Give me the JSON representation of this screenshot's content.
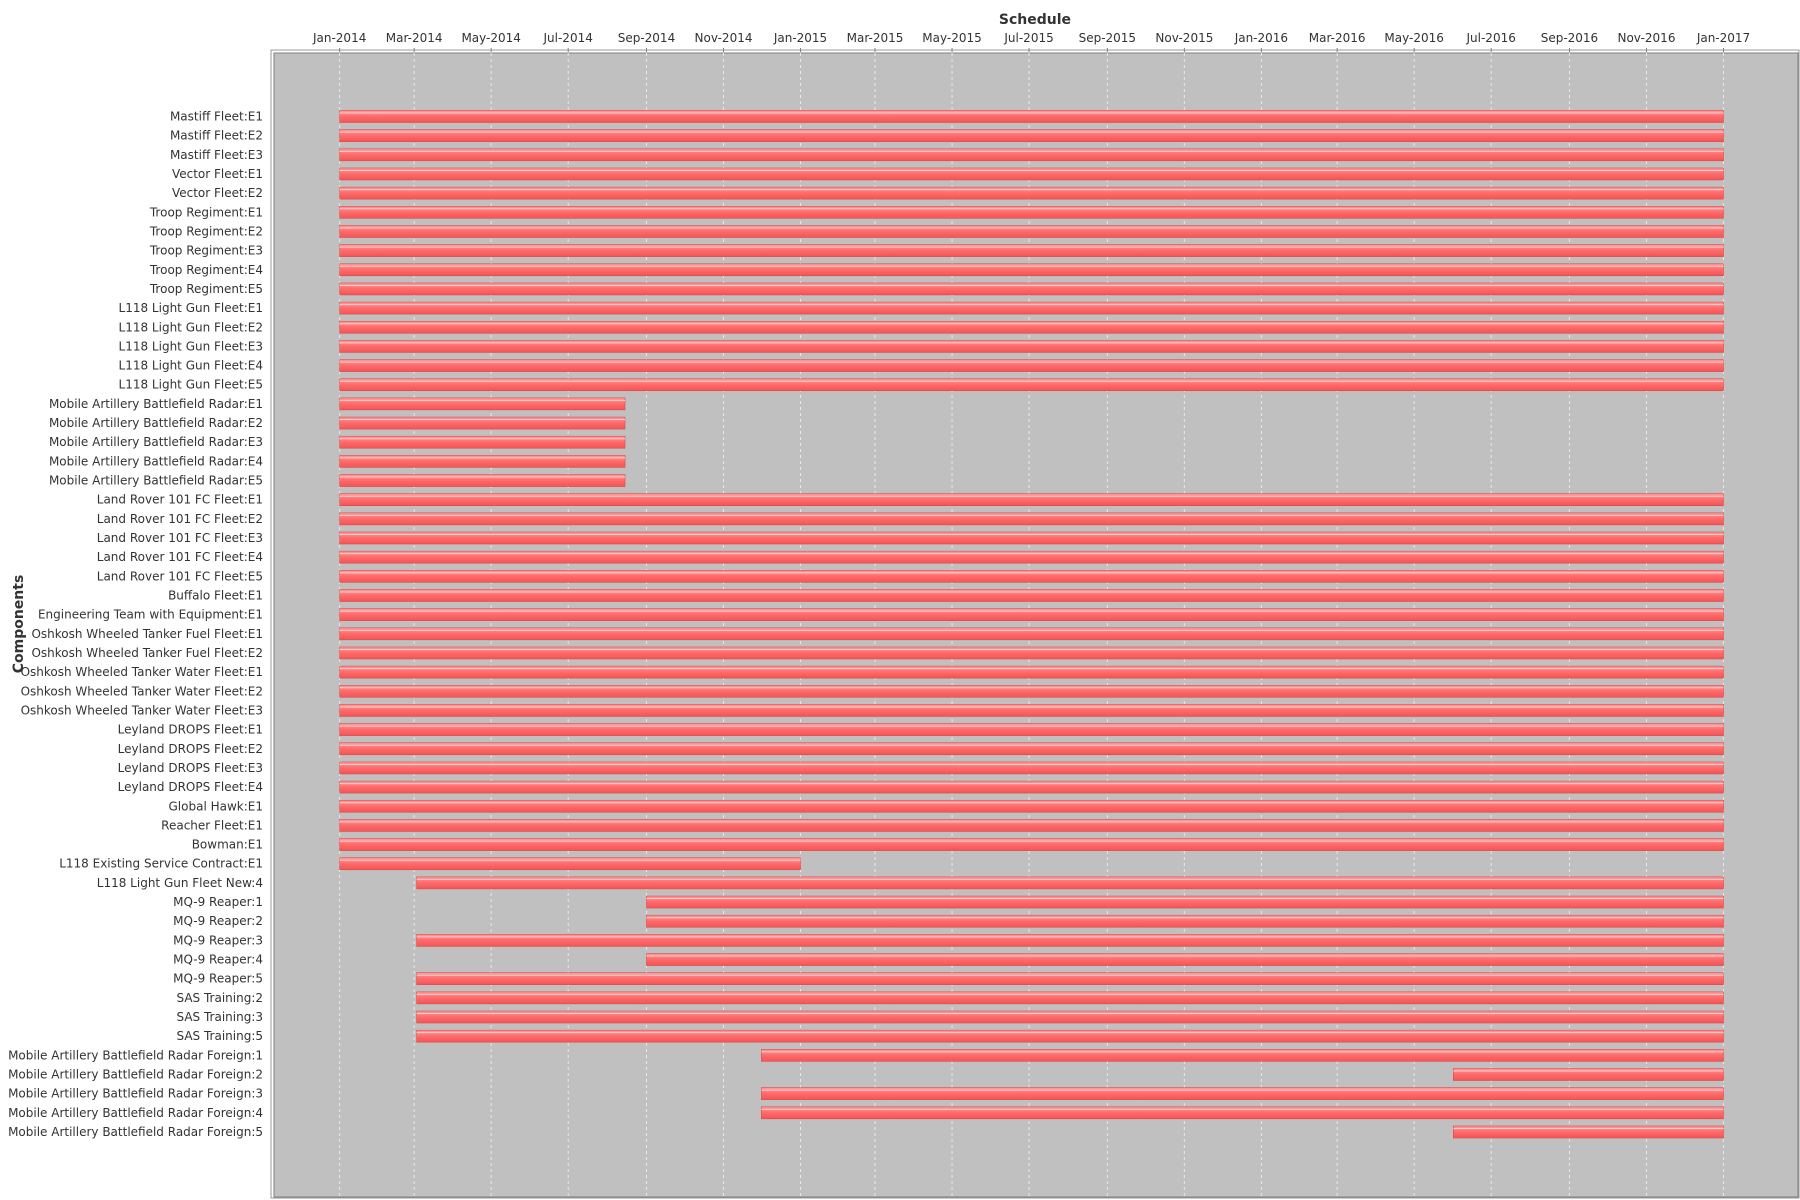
{
  "chart_data": {
    "type": "gantt",
    "title": "Schedule",
    "xlabel": "",
    "ylabel": "Components",
    "x_range": [
      "2013-11-10",
      "2017-03-01"
    ],
    "x_ticks": [
      "Jan-2014",
      "Mar-2014",
      "May-2014",
      "Jul-2014",
      "Sep-2014",
      "Nov-2014",
      "Jan-2015",
      "Mar-2015",
      "May-2015",
      "Jul-2015",
      "Sep-2015",
      "Nov-2015",
      "Jan-2016",
      "Mar-2016",
      "May-2016",
      "Jul-2016",
      "Sep-2016",
      "Nov-2016",
      "Jan-2017"
    ],
    "x_tick_dates": [
      "2014-01-01",
      "2014-03-01",
      "2014-05-01",
      "2014-07-01",
      "2014-09-01",
      "2014-11-01",
      "2015-01-01",
      "2015-03-01",
      "2015-05-01",
      "2015-07-01",
      "2015-09-01",
      "2015-11-01",
      "2016-01-01",
      "2016-03-01",
      "2016-05-01",
      "2016-07-01",
      "2016-09-01",
      "2016-11-01",
      "2017-01-01"
    ],
    "grid": true,
    "colors": {
      "bar": "#ff6a6a",
      "bar_edge": "#e04848",
      "plot_bg": "#c0c0c0",
      "grid": "#e8e8e8"
    },
    "tasks": [
      {
        "name": "Mastiff Fleet:E1",
        "start": "2014-01-01",
        "end": "2017-01-01"
      },
      {
        "name": "Mastiff Fleet:E2",
        "start": "2014-01-01",
        "end": "2017-01-01"
      },
      {
        "name": "Mastiff Fleet:E3",
        "start": "2014-01-01",
        "end": "2017-01-01"
      },
      {
        "name": "Vector Fleet:E1",
        "start": "2014-01-01",
        "end": "2017-01-01"
      },
      {
        "name": "Vector Fleet:E2",
        "start": "2014-01-01",
        "end": "2017-01-01"
      },
      {
        "name": "Troop Regiment:E1",
        "start": "2014-01-01",
        "end": "2017-01-01"
      },
      {
        "name": "Troop Regiment:E2",
        "start": "2014-01-01",
        "end": "2017-01-01"
      },
      {
        "name": "Troop Regiment:E3",
        "start": "2014-01-01",
        "end": "2017-01-01"
      },
      {
        "name": "Troop Regiment:E4",
        "start": "2014-01-01",
        "end": "2017-01-01"
      },
      {
        "name": "Troop Regiment:E5",
        "start": "2014-01-01",
        "end": "2017-01-01"
      },
      {
        "name": "L118 Light Gun Fleet:E1",
        "start": "2014-01-01",
        "end": "2017-01-01"
      },
      {
        "name": "L118 Light Gun Fleet:E2",
        "start": "2014-01-01",
        "end": "2017-01-01"
      },
      {
        "name": "L118 Light Gun Fleet:E3",
        "start": "2014-01-01",
        "end": "2017-01-01"
      },
      {
        "name": "L118 Light Gun Fleet:E4",
        "start": "2014-01-01",
        "end": "2017-01-01"
      },
      {
        "name": "L118 Light Gun Fleet:E5",
        "start": "2014-01-01",
        "end": "2017-01-01"
      },
      {
        "name": "Mobile Artillery Battlefield Radar:E1",
        "start": "2014-01-01",
        "end": "2014-08-15"
      },
      {
        "name": "Mobile Artillery Battlefield Radar:E2",
        "start": "2014-01-01",
        "end": "2014-08-15"
      },
      {
        "name": "Mobile Artillery Battlefield Radar:E3",
        "start": "2014-01-01",
        "end": "2014-08-15"
      },
      {
        "name": "Mobile Artillery Battlefield Radar:E4",
        "start": "2014-01-01",
        "end": "2014-08-15"
      },
      {
        "name": "Mobile Artillery Battlefield Radar:E5",
        "start": "2014-01-01",
        "end": "2014-08-15"
      },
      {
        "name": "Land Rover 101 FC Fleet:E1",
        "start": "2014-01-01",
        "end": "2017-01-01"
      },
      {
        "name": "Land Rover 101 FC Fleet:E2",
        "start": "2014-01-01",
        "end": "2017-01-01"
      },
      {
        "name": "Land Rover 101 FC Fleet:E3",
        "start": "2014-01-01",
        "end": "2017-01-01"
      },
      {
        "name": "Land Rover 101 FC Fleet:E4",
        "start": "2014-01-01",
        "end": "2017-01-01"
      },
      {
        "name": "Land Rover 101 FC Fleet:E5",
        "start": "2014-01-01",
        "end": "2017-01-01"
      },
      {
        "name": "Buffalo Fleet:E1",
        "start": "2014-01-01",
        "end": "2017-01-01"
      },
      {
        "name": "Engineering Team with Equipment:E1",
        "start": "2014-01-01",
        "end": "2017-01-01"
      },
      {
        "name": "Oshkosh Wheeled Tanker Fuel Fleet:E1",
        "start": "2014-01-01",
        "end": "2017-01-01"
      },
      {
        "name": "Oshkosh Wheeled Tanker Fuel Fleet:E2",
        "start": "2014-01-01",
        "end": "2017-01-01"
      },
      {
        "name": "Oshkosh Wheeled Tanker Water Fleet:E1",
        "start": "2014-01-01",
        "end": "2017-01-01"
      },
      {
        "name": "Oshkosh Wheeled Tanker Water Fleet:E2",
        "start": "2014-01-01",
        "end": "2017-01-01"
      },
      {
        "name": "Oshkosh Wheeled Tanker Water Fleet:E3",
        "start": "2014-01-01",
        "end": "2017-01-01"
      },
      {
        "name": "Leyland DROPS Fleet:E1",
        "start": "2014-01-01",
        "end": "2017-01-01"
      },
      {
        "name": "Leyland DROPS Fleet:E2",
        "start": "2014-01-01",
        "end": "2017-01-01"
      },
      {
        "name": "Leyland DROPS Fleet:E3",
        "start": "2014-01-01",
        "end": "2017-01-01"
      },
      {
        "name": "Leyland DROPS Fleet:E4",
        "start": "2014-01-01",
        "end": "2017-01-01"
      },
      {
        "name": "Global Hawk:E1",
        "start": "2014-01-01",
        "end": "2017-01-01"
      },
      {
        "name": "Reacher Fleet:E1",
        "start": "2014-01-01",
        "end": "2017-01-01"
      },
      {
        "name": "Bowman:E1",
        "start": "2014-01-01",
        "end": "2017-01-01"
      },
      {
        "name": "L118 Existing Service Contract:E1",
        "start": "2014-01-01",
        "end": "2015-01-01"
      },
      {
        "name": "L118 Light Gun Fleet New:4",
        "start": "2014-03-03",
        "end": "2017-01-01"
      },
      {
        "name": "MQ-9 Reaper:1",
        "start": "2014-09-01",
        "end": "2017-01-01"
      },
      {
        "name": "MQ-9 Reaper:2",
        "start": "2014-09-01",
        "end": "2017-01-01"
      },
      {
        "name": "MQ-9 Reaper:3",
        "start": "2014-03-03",
        "end": "2017-01-01"
      },
      {
        "name": "MQ-9 Reaper:4",
        "start": "2014-09-01",
        "end": "2017-01-01"
      },
      {
        "name": "MQ-9 Reaper:5",
        "start": "2014-03-03",
        "end": "2017-01-01"
      },
      {
        "name": "SAS Training:2",
        "start": "2014-03-03",
        "end": "2017-01-01"
      },
      {
        "name": "SAS Training:3",
        "start": "2014-03-03",
        "end": "2017-01-01"
      },
      {
        "name": "SAS Training:5",
        "start": "2014-03-03",
        "end": "2017-01-01"
      },
      {
        "name": "Mobile Artillery Battlefield Radar Foreign:1",
        "start": "2014-12-01",
        "end": "2017-01-01"
      },
      {
        "name": "Mobile Artillery Battlefield Radar Foreign:2",
        "start": "2016-06-01",
        "end": "2017-01-01"
      },
      {
        "name": "Mobile Artillery Battlefield Radar Foreign:3",
        "start": "2014-12-01",
        "end": "2017-01-01"
      },
      {
        "name": "Mobile Artillery Battlefield Radar Foreign:4",
        "start": "2014-12-01",
        "end": "2017-01-01"
      },
      {
        "name": "Mobile Artillery Battlefield Radar Foreign:5",
        "start": "2016-06-01",
        "end": "2017-01-01"
      }
    ]
  }
}
